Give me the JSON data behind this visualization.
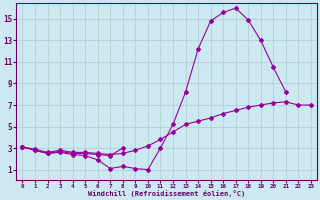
{
  "xlabel": "Windchill (Refroidissement éolien,°C)",
  "background_color": "#cce8f0",
  "line_color": "#990099",
  "grid_color": "#aacccc",
  "x_min": 0,
  "x_max": 23,
  "y_min": 0,
  "y_max": 16.5,
  "yticks": [
    1,
    3,
    5,
    7,
    9,
    11,
    13,
    15
  ],
  "xticks": [
    0,
    1,
    2,
    3,
    4,
    5,
    6,
    7,
    8,
    9,
    10,
    11,
    12,
    13,
    14,
    15,
    16,
    17,
    18,
    19,
    20,
    21,
    22,
    23
  ],
  "line1_x": [
    0,
    1,
    2,
    3,
    4,
    5,
    6,
    7,
    8,
    9,
    10,
    11,
    12,
    13,
    14,
    15,
    16,
    17,
    18,
    19,
    20,
    21
  ],
  "line1_y": [
    3.1,
    2.8,
    2.5,
    2.6,
    2.4,
    2.3,
    1.9,
    1.1,
    1.3,
    1.1,
    1.0,
    3.0,
    5.2,
    8.2,
    12.2,
    14.8,
    15.6,
    16.0,
    14.9,
    13.0,
    10.5,
    8.2
  ],
  "line2_x": [
    0,
    1,
    2,
    3,
    4,
    5,
    6,
    7,
    8
  ],
  "line2_y": [
    3.1,
    2.8,
    2.5,
    2.7,
    2.5,
    2.5,
    2.4,
    2.3,
    3.0
  ],
  "line3_x": [
    0,
    1,
    2,
    3,
    4,
    5,
    6,
    7,
    8,
    9,
    10,
    11,
    12,
    13,
    14,
    15,
    16,
    17,
    18,
    19,
    20,
    21,
    22,
    23
  ],
  "line3_y": [
    3.1,
    2.9,
    2.6,
    2.8,
    2.6,
    2.6,
    2.5,
    2.4,
    2.5,
    2.8,
    3.2,
    3.8,
    4.5,
    5.2,
    5.5,
    5.8,
    6.2,
    6.5,
    6.8,
    7.0,
    7.2,
    7.3,
    7.0,
    7.0
  ]
}
